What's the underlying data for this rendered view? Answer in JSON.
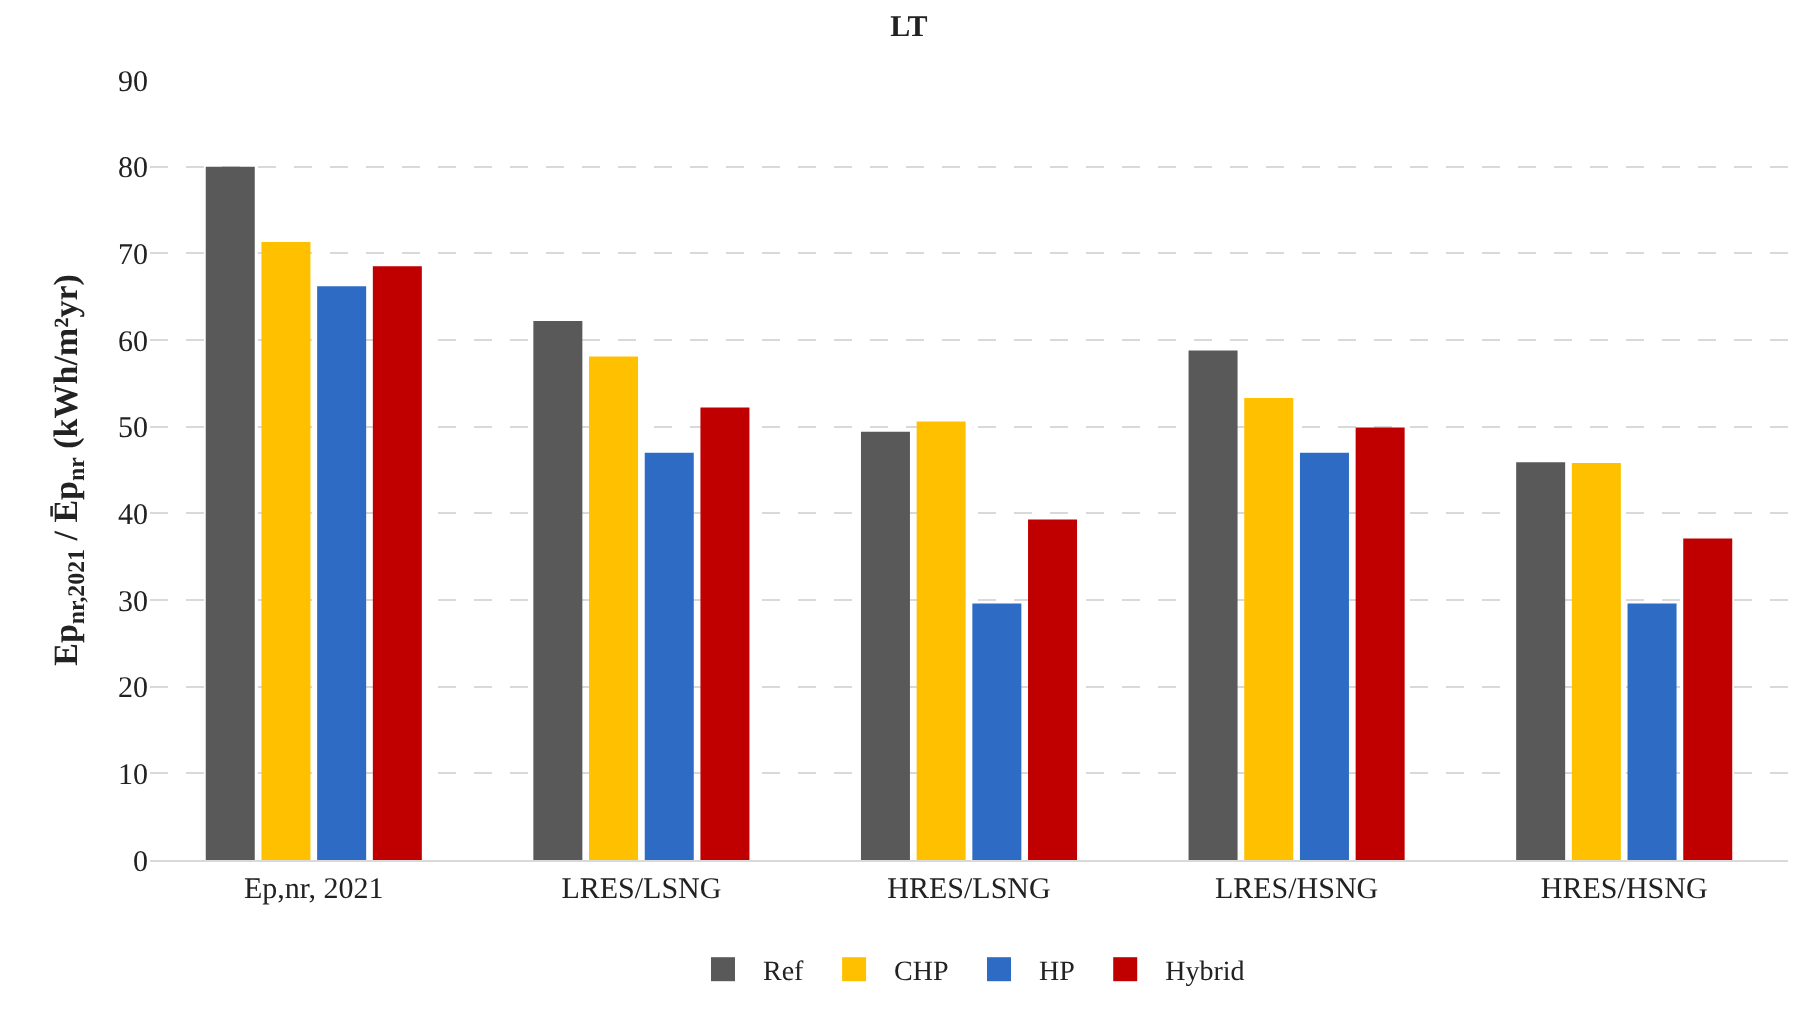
{
  "chart_data": {
    "type": "bar",
    "title": "LT",
    "ylabel": "Ep$_{nr,2021}$ / Ēp$_{nr}$ (kWh/m²yr)",
    "categories": [
      "Ep,nr, 2021",
      "LRES/LSNG",
      "HRES/LSNG",
      "LRES/HSNG",
      "HRES/HSNG"
    ],
    "series": [
      {
        "name": "Ref",
        "color": "#595959",
        "values": [
          80,
          62.2,
          49.4,
          58.8,
          45.9
        ]
      },
      {
        "name": "CHP",
        "color": "#ffc000",
        "values": [
          71.3,
          58.1,
          50.6,
          53.3,
          45.8
        ]
      },
      {
        "name": "HP",
        "color": "#2e6bc4",
        "values": [
          66.2,
          47.0,
          29.6,
          47.0,
          29.6
        ]
      },
      {
        "name": "Hybrid",
        "color": "#c00000",
        "values": [
          68.5,
          52.2,
          39.3,
          49.9,
          37.1
        ]
      }
    ],
    "ylim": [
      0,
      90
    ],
    "yticks": [
      0,
      10,
      20,
      30,
      40,
      50,
      60,
      70,
      80,
      90
    ],
    "grid": "y",
    "legend": "bottom"
  }
}
